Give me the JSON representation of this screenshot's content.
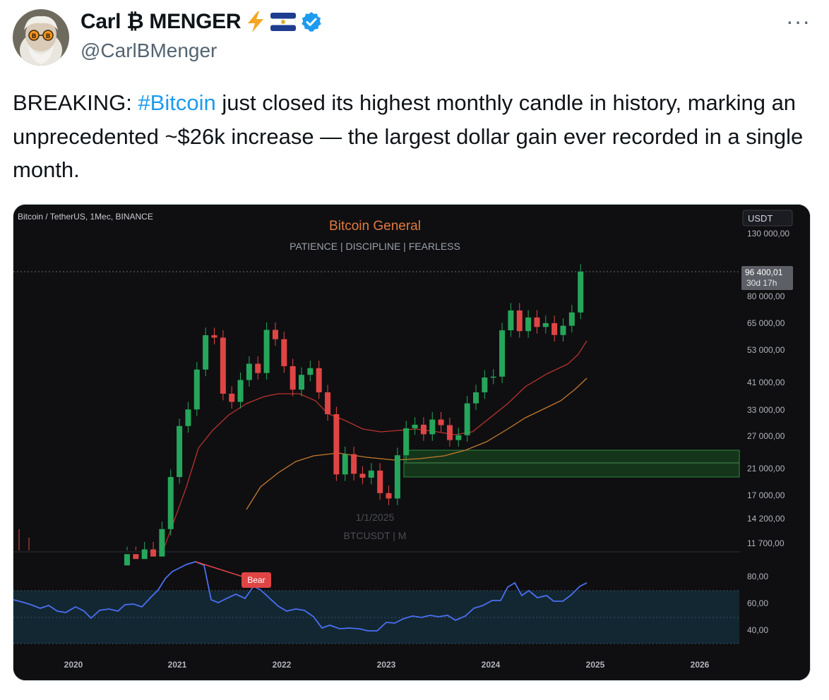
{
  "author": {
    "display_name": "Carl ₿ MENGER",
    "handle": "@CarlBMenger",
    "badges": [
      "lightning-emoji",
      "el-salvador-flag-emoji",
      "verified-badge-icon"
    ],
    "avatar_icon": "bitcoin-eyed-old-man-avatar"
  },
  "more_label": "···",
  "tweet": {
    "text_before": "BREAKING: ",
    "hashtag": "#Bitcoin",
    "text_after": " just closed its highest monthly candle in history, marking an unprecedented ~$26k increase — the largest dollar gain ever recorded in a single month."
  },
  "chart_data": {
    "type": "candlestick",
    "symbol_label": "Bitcoin / TetherUS, 1Mec, BINANCE",
    "title": "Bitcoin General",
    "subtitle": "PATIENCE | DISCIPLINE | FEARLESS",
    "currency_label": "USDT",
    "watermark_date": "1/1/2025",
    "watermark_symbol": "BTCUSDT | M",
    "price_tag": {
      "value": "96 400,01",
      "countdown": "30d 17h"
    },
    "y_ticks": [
      "130 000,00",
      "80 000,00",
      "65 000,00",
      "53 000,00",
      "41 000,00",
      "33 000,00",
      "27 000,00",
      "21 000,00",
      "17 000,00",
      "14 200,00",
      "11 700,00"
    ],
    "x_ticks": [
      "2020",
      "2021",
      "2022",
      "2023",
      "2024",
      "2025",
      "2026"
    ],
    "indicator": {
      "label": "Bear",
      "ticks": [
        "80,00",
        "60,00",
        "40,00"
      ]
    },
    "support_zone": [
      20000,
      23500
    ],
    "candles": [
      {
        "o": 9800,
        "c": 10700
      },
      {
        "o": 10700,
        "c": 10300
      },
      {
        "o": 10300,
        "c": 11100
      },
      {
        "o": 11100,
        "c": 10500
      },
      {
        "o": 10500,
        "c": 13000
      },
      {
        "o": 13000,
        "c": 19500
      },
      {
        "o": 19500,
        "c": 29000
      },
      {
        "o": 29000,
        "c": 33000
      },
      {
        "o": 33000,
        "c": 45000
      },
      {
        "o": 45000,
        "c": 58800
      },
      {
        "o": 58800,
        "c": 57700
      },
      {
        "o": 57700,
        "c": 37300
      },
      {
        "o": 37300,
        "c": 35000
      },
      {
        "o": 35000,
        "c": 41500
      },
      {
        "o": 41500,
        "c": 47100
      },
      {
        "o": 47100,
        "c": 43800
      },
      {
        "o": 43800,
        "c": 61300
      },
      {
        "o": 61300,
        "c": 57000
      },
      {
        "o": 57000,
        "c": 46200
      },
      {
        "o": 46200,
        "c": 38500
      },
      {
        "o": 38500,
        "c": 43200
      },
      {
        "o": 43200,
        "c": 45500
      },
      {
        "o": 45500,
        "c": 37700
      },
      {
        "o": 37700,
        "c": 31800
      },
      {
        "o": 31800,
        "c": 19900
      },
      {
        "o": 19900,
        "c": 23300
      },
      {
        "o": 23300,
        "c": 20000
      },
      {
        "o": 20000,
        "c": 19400
      },
      {
        "o": 19400,
        "c": 20500
      },
      {
        "o": 20500,
        "c": 17200
      },
      {
        "o": 17200,
        "c": 16500
      },
      {
        "o": 16500,
        "c": 23100
      },
      {
        "o": 23100,
        "c": 28500
      },
      {
        "o": 28500,
        "c": 29300
      },
      {
        "o": 29300,
        "c": 27200
      },
      {
        "o": 27200,
        "c": 30500
      },
      {
        "o": 30500,
        "c": 29200
      },
      {
        "o": 29200,
        "c": 26000
      },
      {
        "o": 26000,
        "c": 27000
      },
      {
        "o": 27000,
        "c": 34600
      },
      {
        "o": 34600,
        "c": 37700
      },
      {
        "o": 37700,
        "c": 42300
      },
      {
        "o": 42300,
        "c": 42600
      },
      {
        "o": 42600,
        "c": 61100
      },
      {
        "o": 61100,
        "c": 71300
      },
      {
        "o": 71300,
        "c": 60700
      },
      {
        "o": 60700,
        "c": 67500
      },
      {
        "o": 67500,
        "c": 62700
      },
      {
        "o": 62700,
        "c": 64600
      },
      {
        "o": 64600,
        "c": 58900
      },
      {
        "o": 58900,
        "c": 63300
      },
      {
        "o": 63300,
        "c": 70200
      },
      {
        "o": 70200,
        "c": 96400
      }
    ]
  }
}
